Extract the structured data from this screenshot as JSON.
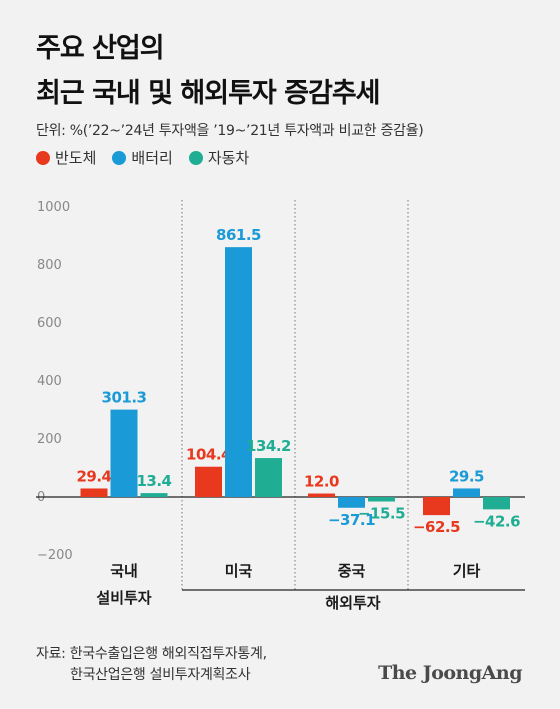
{
  "title": {
    "line1": "주요 산업의",
    "line2": "최근 국내 및 해외투자 증감추세"
  },
  "unit_note": "단위: %(’22~’24년 투자액을 ’19~’21년 투자액과 비교한 증감율)",
  "source": {
    "line1": "자료: 한국수출입은행 해외직접투자통계,",
    "line2": "한국산업은행 설비투자계획조사"
  },
  "logo_text": "The JoongAng",
  "chart_data": {
    "type": "bar",
    "categories": [
      "국내 설비투자",
      "미국",
      "중국",
      "기타"
    ],
    "category_lines": [
      [
        "국내",
        "설비투자"
      ],
      [
        "미국"
      ],
      [
        "중국"
      ],
      [
        "기타"
      ]
    ],
    "group_label": "해외투자",
    "group_members": [
      "미국",
      "중국",
      "기타"
    ],
    "series": [
      {
        "name": "반도체",
        "color": "#e8381e",
        "values": [
          29.4,
          104.4,
          12.0,
          -62.5
        ],
        "labels": [
          "29.4",
          "104.4",
          "12.0",
          "-62.5"
        ]
      },
      {
        "name": "배터리",
        "color": "#1a9ad6",
        "values": [
          301.3,
          861.5,
          -37.1,
          29.5
        ],
        "labels": [
          "301.3",
          "861.5",
          "-37.1",
          "29.5"
        ]
      },
      {
        "name": "자동차",
        "color": "#1fae94",
        "values": [
          13.4,
          134.2,
          -15.5,
          -42.6
        ],
        "labels": [
          "13.4",
          "134.2",
          "-15.5",
          "-42.6"
        ]
      }
    ],
    "ylim": [
      -200,
      1000
    ],
    "yticks": [
      1000,
      800,
      600,
      400,
      200,
      0,
      -200
    ],
    "ytick_labels": [
      "1000",
      "800",
      "600",
      "400",
      "200",
      "0",
      "−200"
    ],
    "label_colors": {
      "positive": [
        "#e8381e",
        "#1a9ad6",
        "#1fae94"
      ],
      "negative": [
        "#e8381e",
        "#1a9ad6",
        "#1fae94"
      ]
    },
    "grid": false
  }
}
